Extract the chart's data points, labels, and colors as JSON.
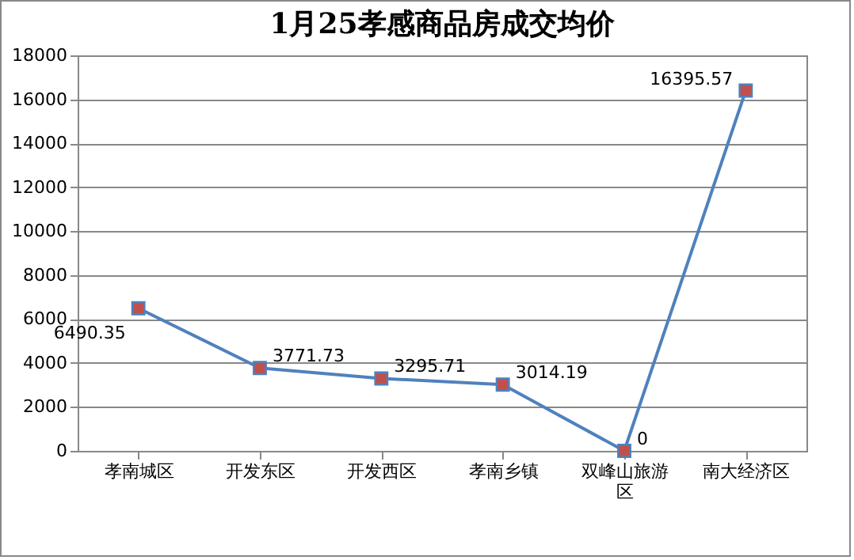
{
  "chart_data": {
    "type": "line",
    "title": "1月25孝感商品房成交均价",
    "categories": [
      "孝南城区",
      "开发东区",
      "开发西区",
      "孝南乡镇",
      "双峰山旅游区",
      "南大经济区"
    ],
    "series": [
      {
        "color": "#4f81bd",
        "values": [
          6490.35,
          3771.73,
          3295.71,
          3014.19,
          0,
          16395.57
        ]
      }
    ],
    "ylim": [
      0,
      18000
    ],
    "yticks": [
      0,
      2000,
      4000,
      6000,
      8000,
      10000,
      12000,
      14000,
      16000,
      18000
    ],
    "grid": "y",
    "marker": "square",
    "data_labels": true
  }
}
